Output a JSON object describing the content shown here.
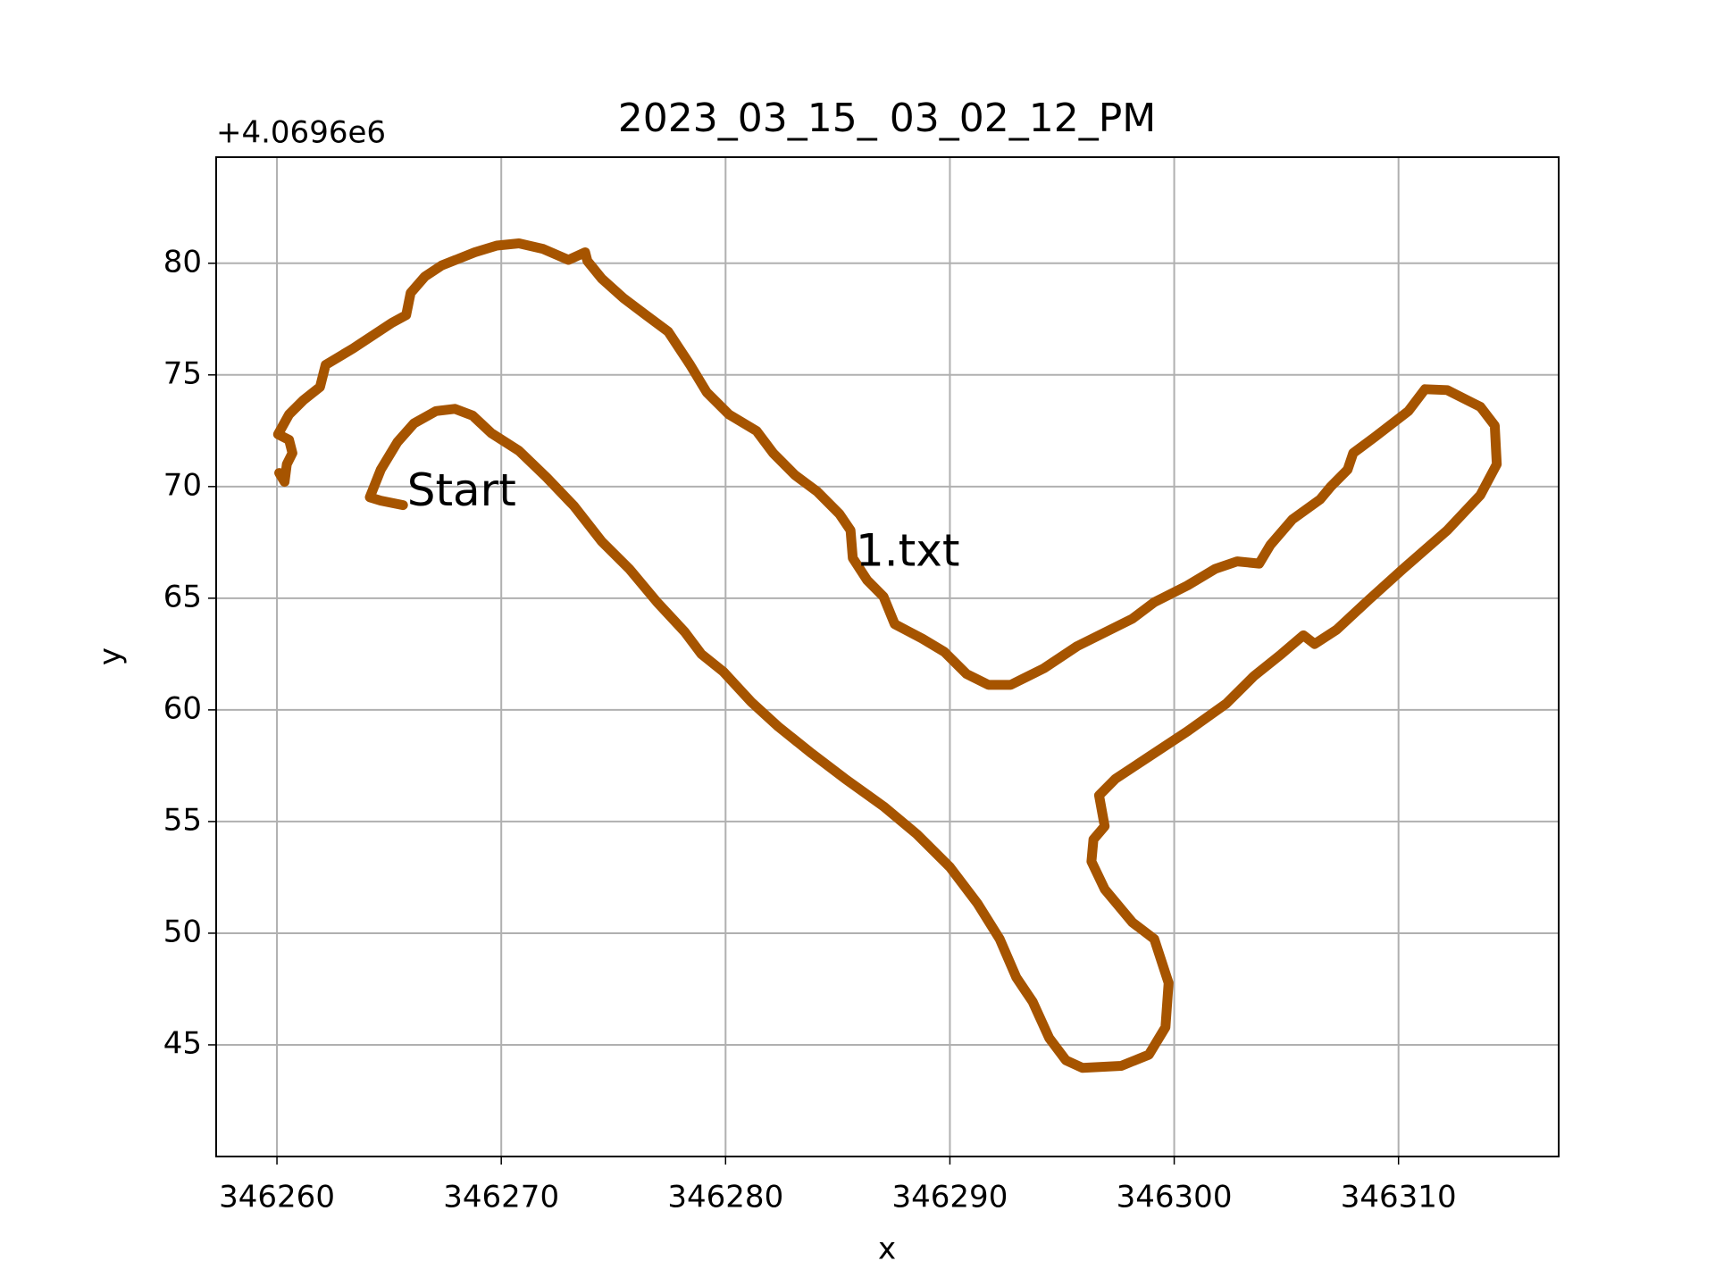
{
  "chart_data": {
    "type": "line",
    "title": "2023_03_15_ 03_02_12_PM",
    "x_label": "x",
    "y_label": "y",
    "y_offset_label": "+4.0696e6",
    "xlim": [
      346257.29,
      346317.14
    ],
    "ylim": [
      40.0,
      84.75
    ],
    "xticks": [
      346260,
      346270,
      346280,
      346290,
      346300,
      346310
    ],
    "yticks": [
      45,
      50,
      55,
      60,
      65,
      70,
      75,
      80
    ],
    "grid": true,
    "annotations": [
      {
        "text": "Start",
        "x": 346265.8,
        "y": 69.7,
        "color": "#ff0000"
      },
      {
        "text": "1.txt",
        "x": 346285.8,
        "y": 67.0,
        "color": "#000000"
      }
    ],
    "series": [
      {
        "color": "#a65400",
        "x": [
          346265.62,
          346264.63,
          346264.14,
          346264.63,
          346265.37,
          346266.11,
          346267.09,
          346267.93,
          346268.72,
          346269.56,
          346270.79,
          346272.02,
          346273.25,
          346274.48,
          346275.71,
          346276.95,
          346278.18,
          346278.92,
          346279.9,
          346281.13,
          346282.36,
          346283.84,
          346285.32,
          346287.04,
          346288.52,
          346290.0,
          346291.23,
          346292.22,
          346292.96,
          346293.69,
          346294.43,
          346295.17,
          346295.91,
          346297.64,
          346298.87,
          346299.61,
          346299.75,
          346299.11,
          346298.13,
          346296.9,
          346296.31,
          346296.4,
          346296.9,
          346296.65,
          346297.39,
          346298.87,
          346300.59,
          346302.32,
          346303.55,
          346304.78,
          346305.76,
          346306.26,
          346307.24,
          346308.72,
          346310.2,
          346312.17,
          346313.65,
          346314.38,
          346314.29,
          346313.65,
          346312.17,
          346311.18,
          346310.44,
          346308.97,
          346307.98,
          346307.73,
          346306.99,
          346306.5,
          346305.27,
          346304.29,
          346303.79,
          346302.81,
          346301.82,
          346300.59,
          346299.11,
          346298.13,
          346296.65,
          346295.67,
          346294.19,
          346292.71,
          346291.72,
          346290.74,
          346289.75,
          346288.77,
          346287.54,
          346287.04,
          346286.31,
          346285.67,
          346285.57,
          346285.07,
          346284.09,
          346283.1,
          346282.12,
          346281.38,
          346280.15,
          346279.16,
          346278.42,
          346277.44,
          346276.45,
          346275.47,
          346274.48,
          346273.84,
          346273.74,
          346273.0,
          346271.87,
          346270.79,
          346269.8,
          346268.82,
          346267.34,
          346266.6,
          346265.96,
          346265.76,
          346265.12,
          346264.38,
          346263.4,
          346262.17,
          346261.92,
          346261.18,
          346260.54,
          346260.05,
          346260.54,
          346260.69,
          346260.44,
          346260.34,
          346260.1
        ],
        "values": [
          69.17,
          69.37,
          69.52,
          70.76,
          71.99,
          72.83,
          73.38,
          73.48,
          73.18,
          72.39,
          71.6,
          70.41,
          69.12,
          67.54,
          66.31,
          64.82,
          63.49,
          62.5,
          61.71,
          60.37,
          59.24,
          58.05,
          56.92,
          55.68,
          54.44,
          52.96,
          51.33,
          49.74,
          48.02,
          46.93,
          45.3,
          44.31,
          43.97,
          44.06,
          44.56,
          45.79,
          47.77,
          49.74,
          50.49,
          51.97,
          53.21,
          54.2,
          54.79,
          56.17,
          56.92,
          57.9,
          59.04,
          60.28,
          61.51,
          62.5,
          63.34,
          62.95,
          63.59,
          64.97,
          66.31,
          68.04,
          69.62,
          71.0,
          72.73,
          73.57,
          74.32,
          74.36,
          73.38,
          72.24,
          71.5,
          70.76,
          70.01,
          69.42,
          68.53,
          67.39,
          66.55,
          66.65,
          66.31,
          65.57,
          64.82,
          64.08,
          63.34,
          62.85,
          61.86,
          61.12,
          61.12,
          61.61,
          62.6,
          63.19,
          63.84,
          65.07,
          65.81,
          66.8,
          68.04,
          68.78,
          69.77,
          70.51,
          71.5,
          72.49,
          73.23,
          74.22,
          75.45,
          76.94,
          77.68,
          78.42,
          79.31,
          80.1,
          80.49,
          80.15,
          80.64,
          80.89,
          80.79,
          80.49,
          79.9,
          79.41,
          78.67,
          77.68,
          77.33,
          76.84,
          76.19,
          75.45,
          74.46,
          73.87,
          73.23,
          72.34,
          72.09,
          71.5,
          71.0,
          70.21,
          70.61
        ]
      }
    ]
  }
}
